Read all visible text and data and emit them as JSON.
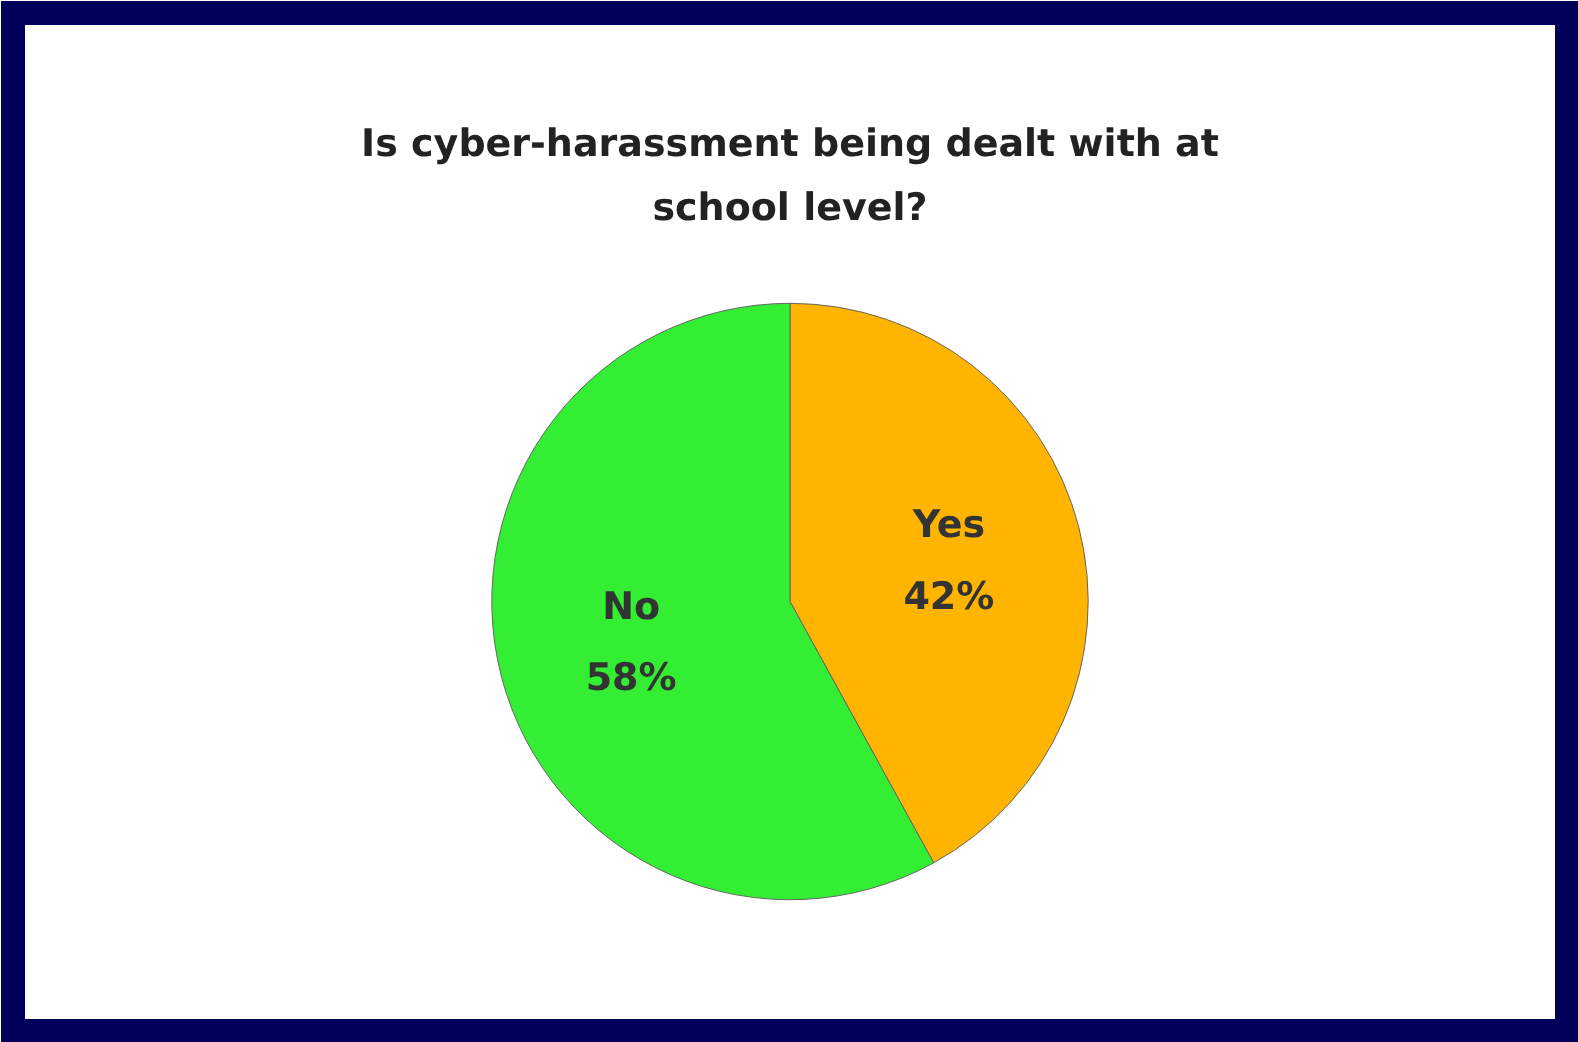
{
  "chart_data": {
    "type": "pie",
    "title": "Is cyber-harassment being dealt with at school level?",
    "categories": [
      "Yes",
      "No"
    ],
    "values": [
      42,
      58
    ],
    "colors": [
      "#ffb400",
      "#33ee33"
    ],
    "value_labels": [
      "42%",
      "58%"
    ]
  }
}
